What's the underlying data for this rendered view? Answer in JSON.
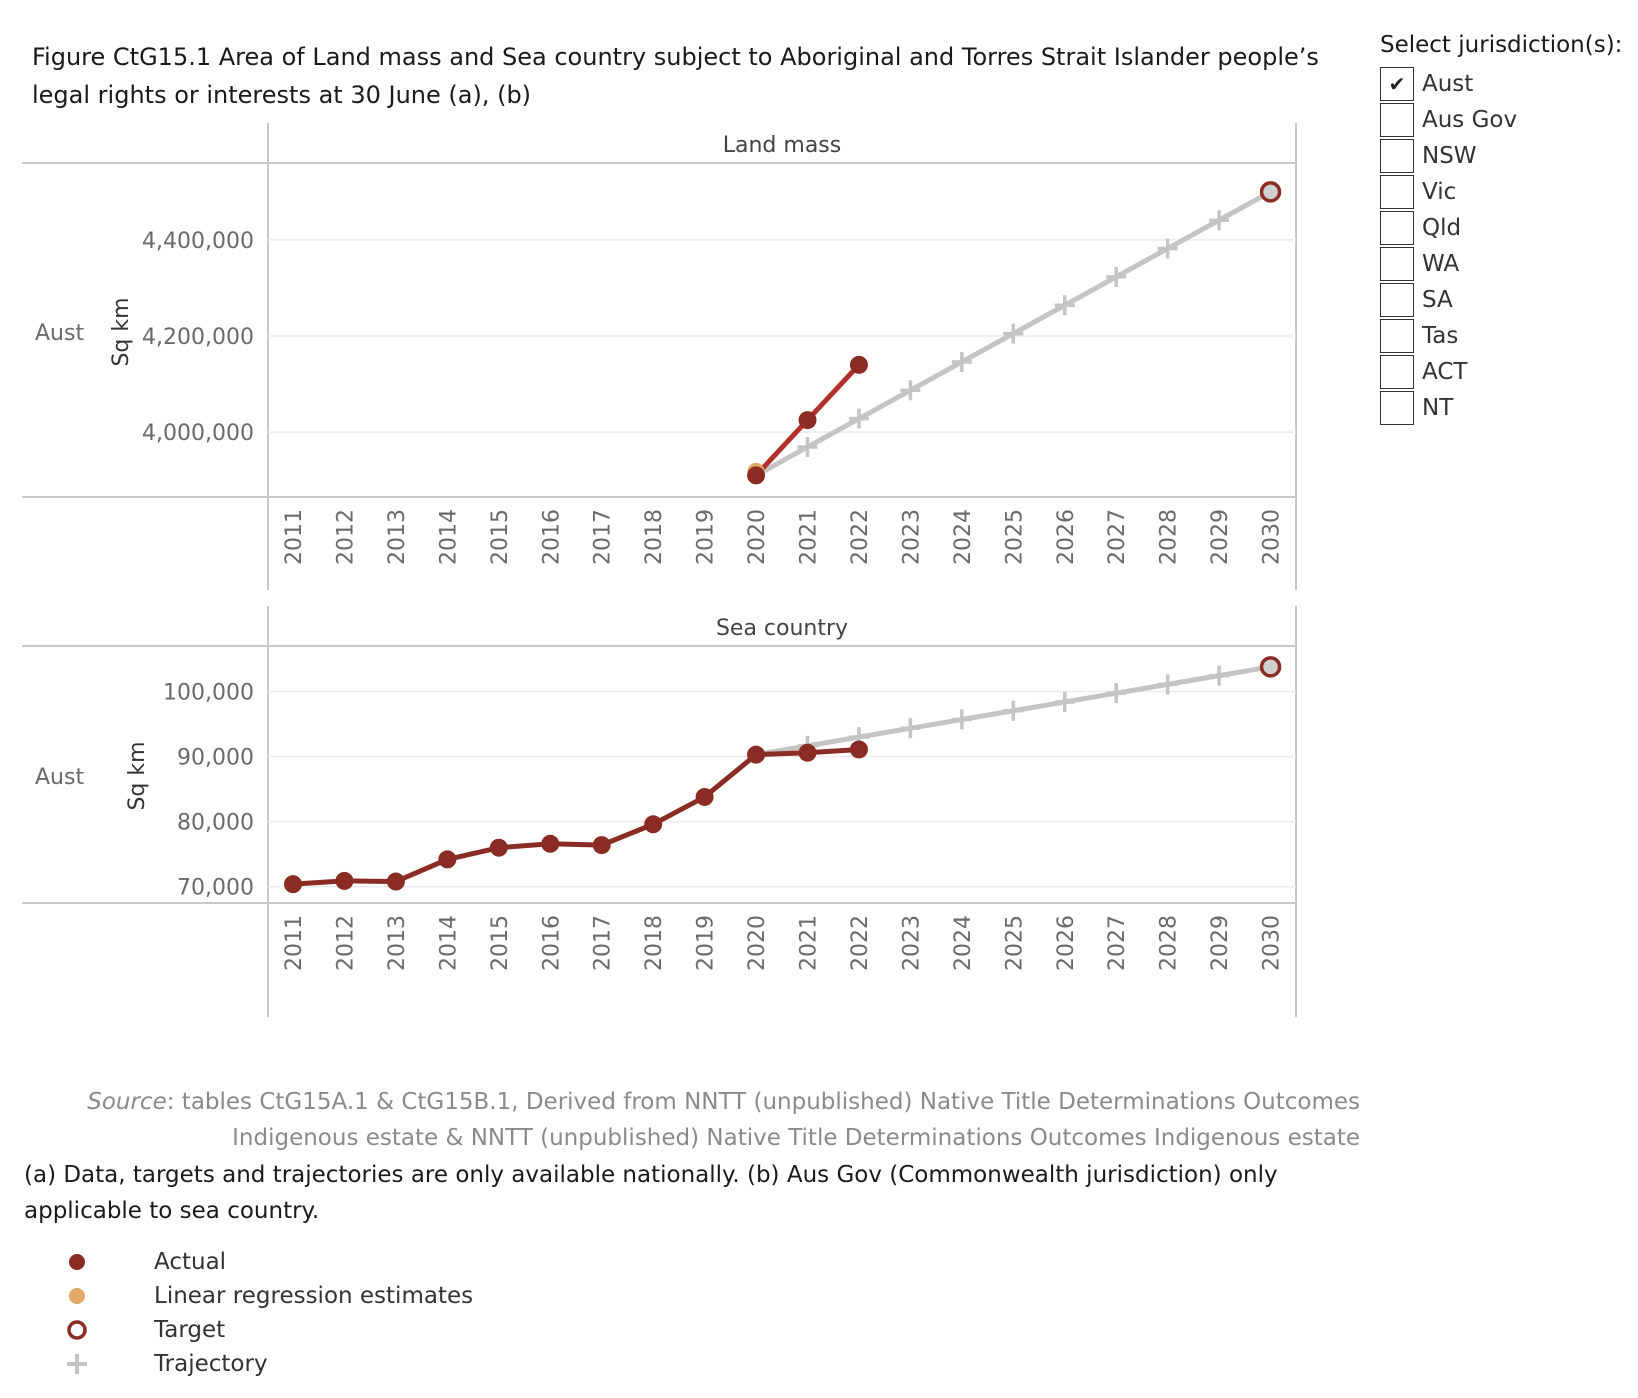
{
  "title": "Figure CtG15.1 Area of Land mass and Sea country subject to Aboriginal and Torres Strait Islander people’s legal rights or interests at 30 June (a), (b)",
  "filter": {
    "title": "Select jurisdiction(s):",
    "options": [
      {
        "label": "Aust",
        "checked": true
      },
      {
        "label": "Aus Gov",
        "checked": false
      },
      {
        "label": "NSW",
        "checked": false
      },
      {
        "label": "Vic",
        "checked": false
      },
      {
        "label": "Qld",
        "checked": false
      },
      {
        "label": "WA",
        "checked": false
      },
      {
        "label": "SA",
        "checked": false
      },
      {
        "label": "Tas",
        "checked": false
      },
      {
        "label": "ACT",
        "checked": false
      },
      {
        "label": "NT",
        "checked": false
      }
    ]
  },
  "source": {
    "label": "Source",
    "text": ": tables CtG15A.1 & CtG15B.1, Derived from NNTT (unpublished) Native Title Determinations Outcomes Indigenous estate & NNTT (unpublished) Native Title Determinations Outcomes Indigenous estate"
  },
  "notes": "(a) Data, targets and trajectories are only available nationally. (b) Aus Gov (Commonwealth jurisdiction) only applicable to sea country.",
  "legend": [
    {
      "label": "Actual",
      "symbol": "filled-circle",
      "color": "#8b2c24"
    },
    {
      "label": "Linear regression estimates",
      "symbol": "filled-circle",
      "color": "#e3a867"
    },
    {
      "label": "Target",
      "symbol": "ring",
      "color": "#8b2c24"
    },
    {
      "label": "Trajectory",
      "symbol": "plus",
      "color": "#c4c4c4"
    }
  ],
  "colors": {
    "actual": "#8b2c24",
    "actual_line_land": "#b1302a",
    "regression": "#e3a867",
    "trajectory": "#c4c4c4",
    "target": "#8b2c24"
  },
  "chart_data": [
    {
      "type": "line",
      "title": "Land mass",
      "row_label": "Aust",
      "ylabel": "Sq km",
      "x": [
        "2011",
        "2012",
        "2013",
        "2014",
        "2015",
        "2016",
        "2017",
        "2018",
        "2019",
        "2020",
        "2021",
        "2022",
        "2023",
        "2024",
        "2025",
        "2026",
        "2027",
        "2028",
        "2029",
        "2030"
      ],
      "ylim": [
        3865000,
        4560000
      ],
      "yticks": [
        4000000,
        4200000,
        4400000
      ],
      "ytick_labels": [
        "4,000,000",
        "4,200,000",
        "4,400,000"
      ],
      "series": [
        {
          "name": "Actual",
          "x": [
            "2020",
            "2021",
            "2022"
          ],
          "values": [
            3910000,
            4025000,
            4140000
          ]
        },
        {
          "name": "Linear regression estimates",
          "x": [
            "2020"
          ],
          "values": [
            3912000
          ]
        },
        {
          "name": "Trajectory",
          "x": [
            "2020",
            "2021",
            "2022",
            "2023",
            "2024",
            "2025",
            "2026",
            "2027",
            "2028",
            "2029",
            "2030"
          ],
          "values": [
            3910000,
            3969000,
            4028000,
            4087000,
            4146000,
            4205000,
            4264000,
            4323000,
            4382000,
            4441000,
            4500000
          ]
        },
        {
          "name": "Target",
          "x": [
            "2030"
          ],
          "values": [
            4500000
          ]
        }
      ]
    },
    {
      "type": "line",
      "title": "Sea country",
      "row_label": "Aust",
      "ylabel": "Sq km",
      "x": [
        "2011",
        "2012",
        "2013",
        "2014",
        "2015",
        "2016",
        "2017",
        "2018",
        "2019",
        "2020",
        "2021",
        "2022",
        "2023",
        "2024",
        "2025",
        "2026",
        "2027",
        "2028",
        "2029",
        "2030"
      ],
      "ylim": [
        67500,
        107000
      ],
      "yticks": [
        70000,
        80000,
        90000,
        100000
      ],
      "ytick_labels": [
        "70,000",
        "80,000",
        "90,000",
        "100,000"
      ],
      "series": [
        {
          "name": "Actual",
          "x": [
            "2011",
            "2012",
            "2013",
            "2014",
            "2015",
            "2016",
            "2017",
            "2018",
            "2019",
            "2020",
            "2021",
            "2022"
          ],
          "values": [
            70400,
            70900,
            70800,
            74200,
            76000,
            76600,
            76400,
            79600,
            83800,
            90300,
            90600,
            91100
          ]
        },
        {
          "name": "Trajectory",
          "x": [
            "2020",
            "2021",
            "2022",
            "2023",
            "2024",
            "2025",
            "2026",
            "2027",
            "2028",
            "2029",
            "2030"
          ],
          "values": [
            90300,
            91650,
            93000,
            94350,
            95700,
            97050,
            98400,
            99750,
            101100,
            102450,
            103800
          ]
        },
        {
          "name": "Target",
          "x": [
            "2030"
          ],
          "values": [
            103800
          ]
        }
      ]
    }
  ]
}
